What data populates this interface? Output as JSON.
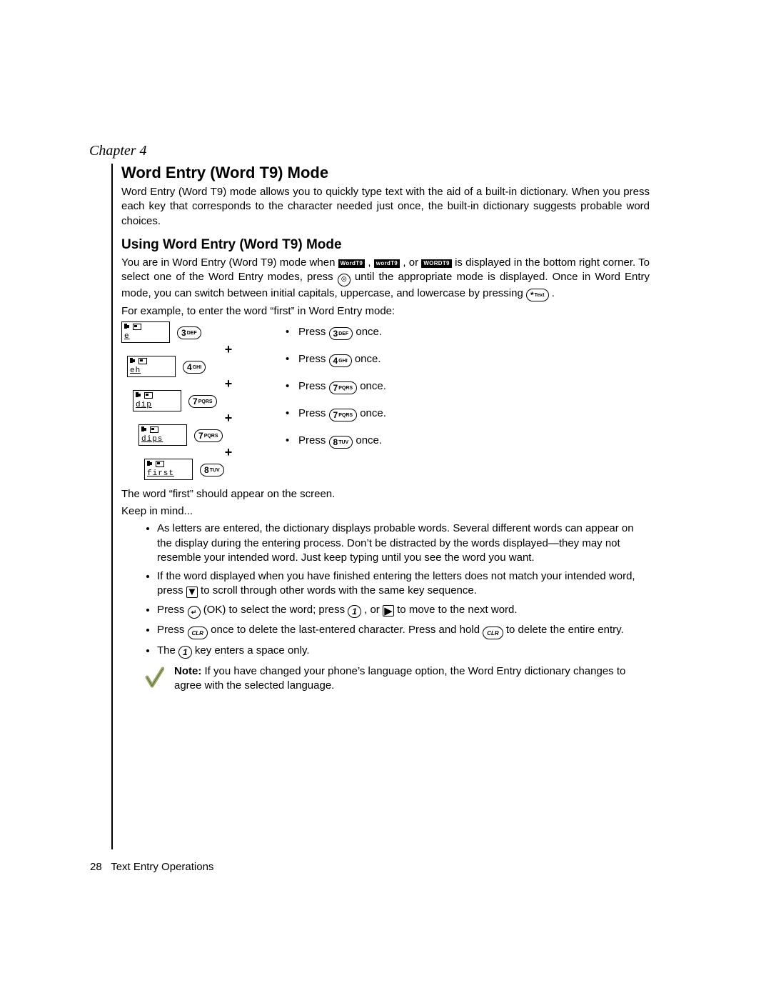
{
  "chapter_label": "Chapter 4",
  "h1": "Word Entry (Word T9) Mode",
  "intro": "Word Entry (Word T9) mode allows you to quickly type text with the aid of a built-in dictionary. When you press each key that corresponds to the character needed just once, the built-in dictionary suggests probable word choices.",
  "h2": "Using Word Entry (Word T9) Mode",
  "using_p1a": "You are in Word Entry (Word T9) mode when ",
  "mode_chip_1": "WordT9",
  "comma1": ", ",
  "mode_chip_2": "wordT9",
  "comma2": ", or ",
  "mode_chip_3": "WORDT9",
  "using_p1b": " is displayed in the bottom right corner. To select one of the Word Entry modes, press ",
  "using_p1c": " until the appropriate mode is displayed. Once in Word Entry mode, you can switch between initial capitals, uppercase, and lowercase by pressing ",
  "using_p1d": " .",
  "example_intro": "For example, to enter the word “first” in Word Entry mode:",
  "diagram": {
    "steps": [
      {
        "indent": 0,
        "screen_text": "e",
        "key_digit": "3",
        "key_letters": "DEF",
        "step_text_a": "Press ",
        "step_text_b": " once."
      },
      {
        "indent": 8,
        "screen_text": "eh",
        "key_digit": "4",
        "key_letters": "GHI",
        "step_text_a": "Press ",
        "step_text_b": " once."
      },
      {
        "indent": 16,
        "screen_text": "dip",
        "key_digit": "7",
        "key_letters": "PQRS",
        "step_text_a": "Press ",
        "step_text_b": " once."
      },
      {
        "indent": 24,
        "screen_text": "dips",
        "key_digit": "7",
        "key_letters": "PQRS",
        "step_text_a": "Press ",
        "step_text_b": " once."
      },
      {
        "indent": 32,
        "screen_text": "first",
        "key_digit": "8",
        "key_letters": "TUV",
        "step_text_a": "Press ",
        "step_text_b": " once."
      }
    ]
  },
  "after_example_1": "The word “first” should appear on the screen.",
  "after_example_2": "Keep in mind...",
  "tips": {
    "a": "As letters are entered, the dictionary displays probable words. Several different words can appear on the display during the entering process. Don’t be distracted by the words displayed—they may not resemble your intended word. Just keep typing until you see the word you want.",
    "b1": "If the word displayed when you have finished entering the letters does not match your intended word, press ",
    "b2": " to scroll through other words with the same key sequence.",
    "c1": "Press ",
    "c2": " (OK) to select the word; press ",
    "c3": " , or ",
    "c4": " to move to the next word.",
    "d1": "Press ",
    "d2": " once to delete the last-entered character. Press and hold ",
    "d3": " to delete the entire entry.",
    "e1": "The ",
    "e2": " key enters a space only."
  },
  "note_label": "Note:",
  "note_text": " If you have changed your phone’s language option, the Word Entry dictionary changes to agree with the selected language.",
  "footer_page": "28",
  "footer_title": "Text Entry Operations",
  "keys": {
    "mode_key": "☉",
    "star_key_digit": "*",
    "star_key_letters": "Text",
    "down_arrow": "▼",
    "ok_arrow": "↵",
    "one": "1",
    "right": "▶",
    "clr": "CLR"
  },
  "colors": {
    "text": "#000000",
    "background": "#ffffff"
  }
}
